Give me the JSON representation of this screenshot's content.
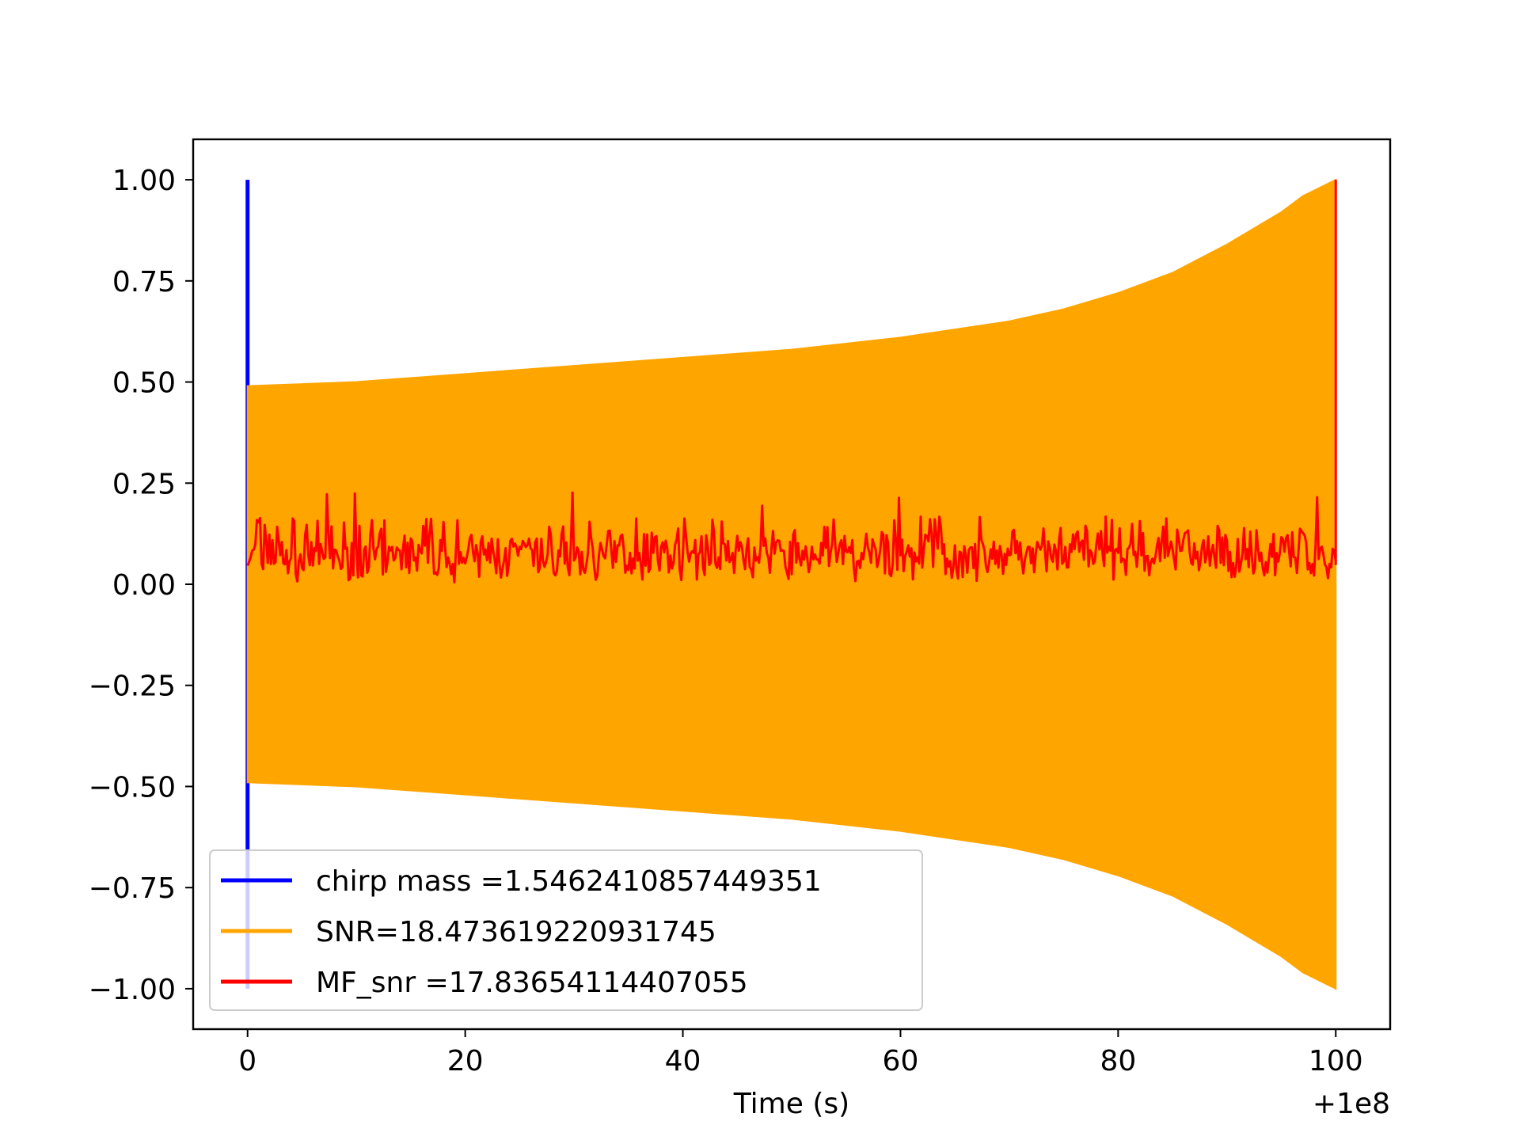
{
  "chart_data": {
    "type": "line",
    "title": "",
    "xlabel": "Time (s)",
    "ylabel": "",
    "x_offset_label": "+1e8",
    "xlim": [
      -5,
      105
    ],
    "ylim": [
      -1.1,
      1.1
    ],
    "xticks": [
      {
        "value": 0,
        "label": "0"
      },
      {
        "value": 20,
        "label": "20"
      },
      {
        "value": 40,
        "label": "40"
      },
      {
        "value": 60,
        "label": "60"
      },
      {
        "value": 80,
        "label": "80"
      },
      {
        "value": 100,
        "label": "100"
      }
    ],
    "yticks": [
      {
        "value": 1.0,
        "label": "1.00"
      },
      {
        "value": 0.75,
        "label": "0.75"
      },
      {
        "value": 0.5,
        "label": "0.50"
      },
      {
        "value": 0.25,
        "label": "0.25"
      },
      {
        "value": 0.0,
        "label": "0.00"
      },
      {
        "value": -0.25,
        "label": "−0.25"
      },
      {
        "value": -0.5,
        "label": "−0.50"
      },
      {
        "value": -0.75,
        "label": "−0.75"
      },
      {
        "value": -1.0,
        "label": "−1.00"
      }
    ],
    "grid": false,
    "legend_position": "lower-left",
    "series": [
      {
        "name": "chirp mass =1.5462410857449351",
        "color": "#0000ff",
        "kind": "spike",
        "x": [
          0,
          0
        ],
        "y": [
          -1.0,
          1.0
        ]
      },
      {
        "name": "SNR=18.473619220931745",
        "color": "#ffa500",
        "kind": "envelope",
        "x": [
          0,
          10,
          20,
          30,
          40,
          50,
          60,
          70,
          75,
          80,
          85,
          90,
          95,
          97,
          100
        ],
        "y_upper": [
          0.49,
          0.5,
          0.52,
          0.54,
          0.56,
          0.58,
          0.61,
          0.65,
          0.68,
          0.72,
          0.77,
          0.84,
          0.92,
          0.96,
          1.0
        ],
        "y_lower": [
          -0.49,
          -0.5,
          -0.52,
          -0.54,
          -0.56,
          -0.58,
          -0.61,
          -0.65,
          -0.68,
          -0.72,
          -0.77,
          -0.84,
          -0.92,
          -0.96,
          -1.0
        ]
      },
      {
        "name": "MF_snr =17.83654114407055",
        "color": "#ff0000",
        "kind": "noise",
        "x_range": [
          0,
          100
        ],
        "baseline": 0.0,
        "typical_max": 0.16,
        "peak_max": 0.24,
        "final_spike": {
          "x": 100,
          "y": 1.0
        }
      }
    ]
  }
}
